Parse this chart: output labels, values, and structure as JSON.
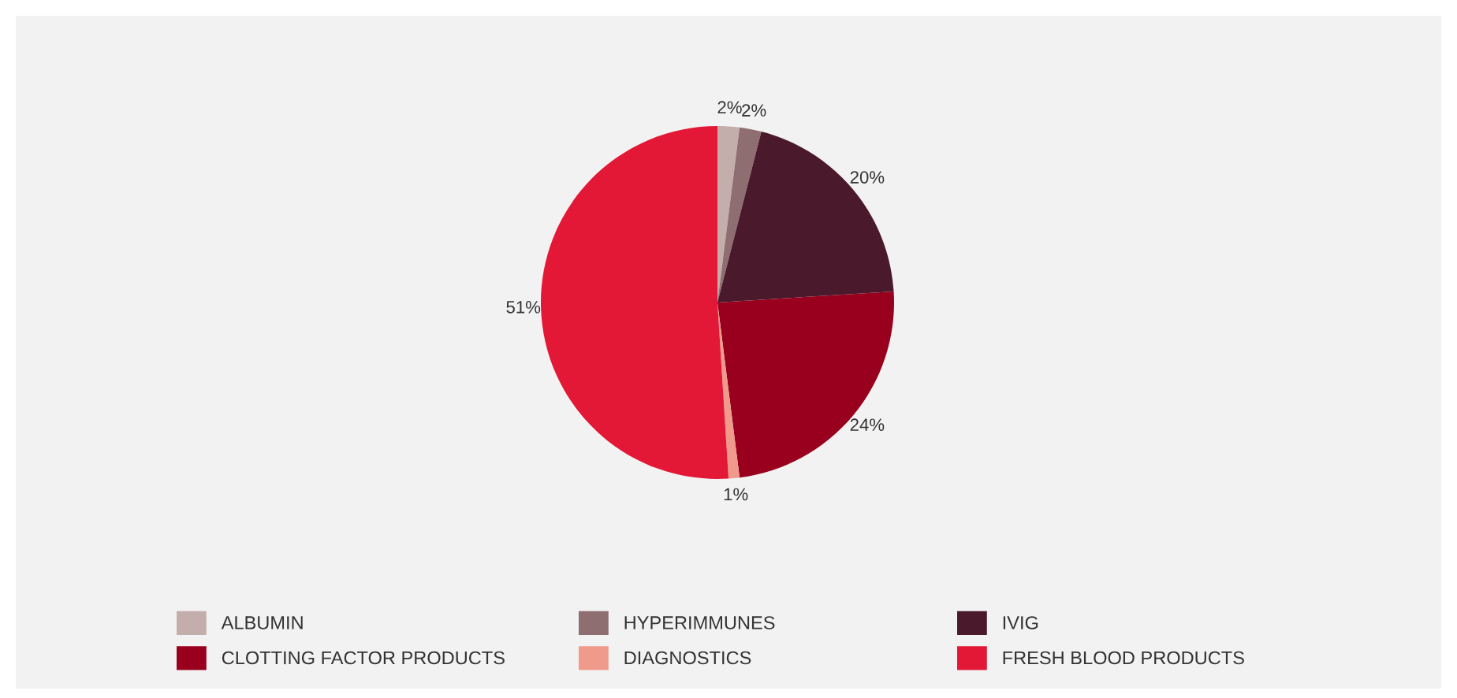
{
  "chart_data": {
    "type": "pie",
    "categories": [
      "ALBUMIN",
      "HYPERIMMUNES",
      "IVIG",
      "CLOTTING FACTOR PRODUCTS",
      "DIAGNOSTICS",
      "FRESH BLOOD PRODUCTS"
    ],
    "values": [
      2,
      2,
      20,
      24,
      1,
      51
    ],
    "value_labels": [
      "2%",
      "2%",
      "20%",
      "24%",
      "1%",
      "51%"
    ],
    "colors": [
      "#c4aeab",
      "#8e6e70",
      "#4a1a2c",
      "#98001e",
      "#ef9a8a",
      "#e31837"
    ],
    "legend": "bottom"
  }
}
